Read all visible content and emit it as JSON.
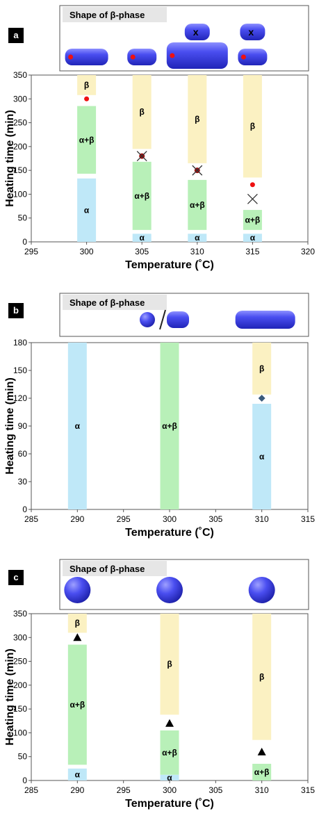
{
  "colors": {
    "alpha": "#bfe8f8",
    "alpha_beta": "#b8f0b8",
    "beta": "#fbf1c2",
    "shape_fill": "#3b3fe0",
    "marker_red": "#ee1111",
    "marker_diamond": "#3a5a7a"
  },
  "chart_data": [
    {
      "panel": "a",
      "type": "bar",
      "shape_title": "Shape of β-phase",
      "xlabel": "Temperature (˚C)",
      "ylabel": "Heating time (min)",
      "xlim": [
        295,
        320
      ],
      "ylim": [
        0,
        350
      ],
      "xticks": [
        295,
        300,
        305,
        310,
        315,
        320
      ],
      "yticks": [
        0,
        50,
        100,
        150,
        200,
        250,
        300,
        350
      ],
      "grid": false,
      "segments": [
        {
          "x": 300,
          "phase": "alpha",
          "label": "α",
          "y0": 0,
          "y1": 133
        },
        {
          "x": 300,
          "phase": "alpha_beta",
          "label": "α+β",
          "y0": 143,
          "y1": 285
        },
        {
          "x": 300,
          "phase": "beta",
          "label": "β",
          "y0": 308,
          "y1": 350
        },
        {
          "x": 305,
          "phase": "alpha",
          "label": "α",
          "y0": 0,
          "y1": 17
        },
        {
          "x": 305,
          "phase": "alpha_beta",
          "label": "α+β",
          "y0": 25,
          "y1": 168
        },
        {
          "x": 305,
          "phase": "beta",
          "label": "β",
          "y0": 195,
          "y1": 350
        },
        {
          "x": 310,
          "phase": "alpha",
          "label": "α",
          "y0": 0,
          "y1": 17
        },
        {
          "x": 310,
          "phase": "alpha_beta",
          "label": "α+β",
          "y0": 25,
          "y1": 130
        },
        {
          "x": 310,
          "phase": "beta",
          "label": "β",
          "y0": 165,
          "y1": 350
        },
        {
          "x": 315,
          "phase": "alpha",
          "label": "α",
          "y0": 0,
          "y1": 17
        },
        {
          "x": 315,
          "phase": "alpha_beta",
          "label": "α+β",
          "y0": 25,
          "y1": 67
        },
        {
          "x": 315,
          "phase": "beta",
          "label": "β",
          "y0": 135,
          "y1": 350
        }
      ],
      "markers": [
        {
          "x": 300,
          "y": 300,
          "symbol": "dot"
        },
        {
          "x": 305,
          "y": 180,
          "symbol": "dot-cross"
        },
        {
          "x": 310,
          "y": 150,
          "symbol": "dot-cross"
        },
        {
          "x": 315,
          "y": 120,
          "symbol": "dot"
        },
        {
          "x": 315,
          "y": 90,
          "symbol": "cross"
        }
      ],
      "shapes": [
        {
          "x": 300,
          "kind": "rod",
          "level": "bottom",
          "size": "medium",
          "mark": "dot"
        },
        {
          "x": 305,
          "kind": "rod",
          "level": "bottom",
          "size": "small",
          "mark": "dot"
        },
        {
          "x": 310,
          "kind": "rod",
          "level": "bottom",
          "size": "large",
          "mark": "dot"
        },
        {
          "x": 310,
          "kind": "rod",
          "level": "top",
          "size": "small",
          "mark": "x",
          "mark_label": "x"
        },
        {
          "x": 315,
          "kind": "rod",
          "level": "bottom",
          "size": "small",
          "mark": "dot"
        },
        {
          "x": 315,
          "kind": "rod",
          "level": "top",
          "size": "small",
          "mark": "x",
          "mark_label": "x"
        }
      ]
    },
    {
      "panel": "b",
      "type": "bar",
      "shape_title": "Shape of β-phase",
      "xlabel": "Temperature (˚C)",
      "ylabel": "Heating time (min)",
      "xlim": [
        285,
        315
      ],
      "ylim": [
        0,
        180
      ],
      "xticks": [
        285,
        290,
        295,
        300,
        305,
        310,
        315
      ],
      "yticks": [
        0,
        30,
        60,
        90,
        120,
        150,
        180
      ],
      "grid": false,
      "segments": [
        {
          "x": 290,
          "phase": "alpha",
          "label": "α",
          "y0": 0,
          "y1": 180
        },
        {
          "x": 300,
          "phase": "alpha_beta",
          "label": "α+β",
          "y0": 0,
          "y1": 180
        },
        {
          "x": 310,
          "phase": "alpha",
          "label": "α",
          "y0": 0,
          "y1": 114
        },
        {
          "x": 310,
          "phase": "beta",
          "label": "β",
          "y0": 124,
          "y1": 180
        }
      ],
      "markers": [
        {
          "x": 310,
          "y": 120,
          "symbol": "diamond"
        }
      ],
      "shapes": [
        {
          "x": 300,
          "kind": "sphere-or-rod"
        },
        {
          "x": 310,
          "kind": "long-rod"
        }
      ]
    },
    {
      "panel": "c",
      "type": "bar",
      "shape_title": "Shape of β-phase",
      "xlabel": "Temperature (˚C)",
      "ylabel": "Heating time (min)",
      "xlim": [
        285,
        315
      ],
      "ylim": [
        0,
        350
      ],
      "xticks": [
        285,
        290,
        295,
        300,
        305,
        310,
        315
      ],
      "yticks": [
        0,
        50,
        100,
        150,
        200,
        250,
        300,
        350
      ],
      "grid": false,
      "segments": [
        {
          "x": 290,
          "phase": "alpha",
          "label": "α",
          "y0": 0,
          "y1": 25
        },
        {
          "x": 290,
          "phase": "alpha_beta",
          "label": "α+β",
          "y0": 33,
          "y1": 285
        },
        {
          "x": 290,
          "phase": "beta",
          "label": "β",
          "y0": 310,
          "y1": 350
        },
        {
          "x": 300,
          "phase": "alpha",
          "label": "α",
          "y0": 0,
          "y1": 12
        },
        {
          "x": 300,
          "phase": "alpha_beta",
          "label": "α+β",
          "y0": 12,
          "y1": 105
        },
        {
          "x": 300,
          "phase": "beta",
          "label": "β",
          "y0": 138,
          "y1": 350
        },
        {
          "x": 310,
          "phase": "alpha_beta",
          "label": "α+β",
          "y0": 0,
          "y1": 35
        },
        {
          "x": 310,
          "phase": "beta",
          "label": "β",
          "y0": 85,
          "y1": 350
        }
      ],
      "markers": [
        {
          "x": 290,
          "y": 300,
          "symbol": "triangle"
        },
        {
          "x": 300,
          "y": 120,
          "symbol": "triangle"
        },
        {
          "x": 310,
          "y": 60,
          "symbol": "triangle"
        }
      ],
      "shapes": [
        {
          "x": 290,
          "kind": "sphere"
        },
        {
          "x": 300,
          "kind": "sphere"
        },
        {
          "x": 310,
          "kind": "sphere"
        }
      ]
    }
  ]
}
